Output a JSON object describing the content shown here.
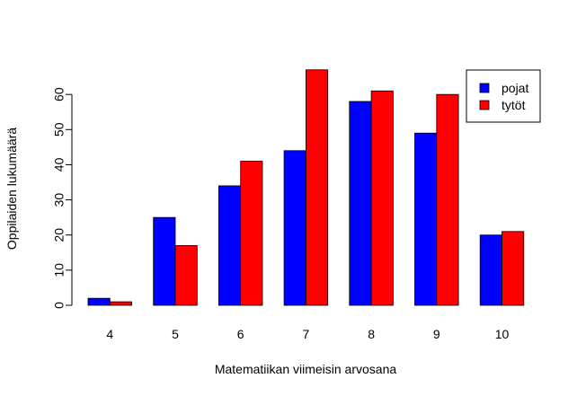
{
  "chart_data": {
    "type": "bar",
    "title": "",
    "xlabel": "Matematiikan viimeisin arvosana",
    "ylabel": "Oppilaiden lukumäärä",
    "categories": [
      "4",
      "5",
      "6",
      "7",
      "8",
      "9",
      "10"
    ],
    "series": [
      {
        "name": "pojat",
        "color": "#0000ff",
        "values": [
          2,
          25,
          34,
          44,
          58,
          49,
          20
        ]
      },
      {
        "name": "tytöt",
        "color": "#ff0000",
        "values": [
          1,
          17,
          41,
          67,
          61,
          60,
          21
        ]
      }
    ],
    "yticks": [
      "0",
      "10",
      "20",
      "30",
      "40",
      "50",
      "60"
    ],
    "ylim": [
      0,
      70
    ],
    "grid": false,
    "legend_position": "top-right"
  }
}
